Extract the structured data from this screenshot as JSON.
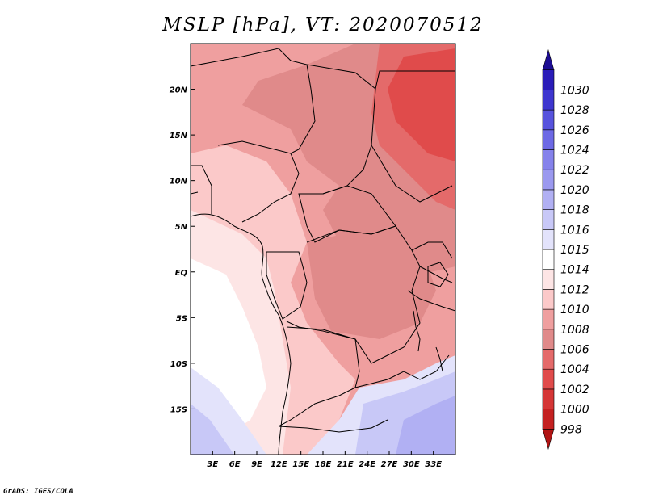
{
  "title": "MSLP [hPa], VT: 2020070512",
  "credit": "GrADS: IGES/COLA",
  "map": {
    "lon_range": [
      0,
      36
    ],
    "lat_range": [
      -20,
      25
    ],
    "lon_ticks": [
      "3E",
      "6E",
      "9E",
      "12E",
      "15E",
      "18E",
      "21E",
      "24E",
      "27E",
      "30E",
      "33E"
    ],
    "lat_ticks": [
      "20N",
      "15N",
      "10N",
      "5N",
      "EQ",
      "5S",
      "10S",
      "15S"
    ]
  },
  "colorbar": {
    "levels": [
      "998",
      "1000",
      "1002",
      "1004",
      "1006",
      "1008",
      "1010",
      "1012",
      "1014",
      "1015",
      "1016",
      "1018",
      "1020",
      "1022",
      "1024",
      "1026",
      "1028",
      "1030"
    ],
    "colors": [
      "#b11414",
      "#c42121",
      "#d53636",
      "#e04b4b",
      "#e46a6a",
      "#e08a8a",
      "#ef9f9f",
      "#fbc9c9",
      "#fde5e5",
      "#ffffff",
      "#e3e3fb",
      "#c8c8f7",
      "#b1b0f3",
      "#9b99ef",
      "#8582eb",
      "#6d69e5",
      "#5753dd",
      "#3e36cf",
      "#2a1cb8",
      "#1d0d94"
    ]
  },
  "legend_colors": {
    "lowest": "#e04b4b",
    "low": "#e08a8a",
    "mid": "#ef9f9f",
    "neutral": "#fbc9c9",
    "light": "#fde5e5",
    "white": "#ffffff",
    "blue1": "#e3e3fb",
    "blue2": "#c8c8f7",
    "blue3": "#b1b0f3"
  }
}
